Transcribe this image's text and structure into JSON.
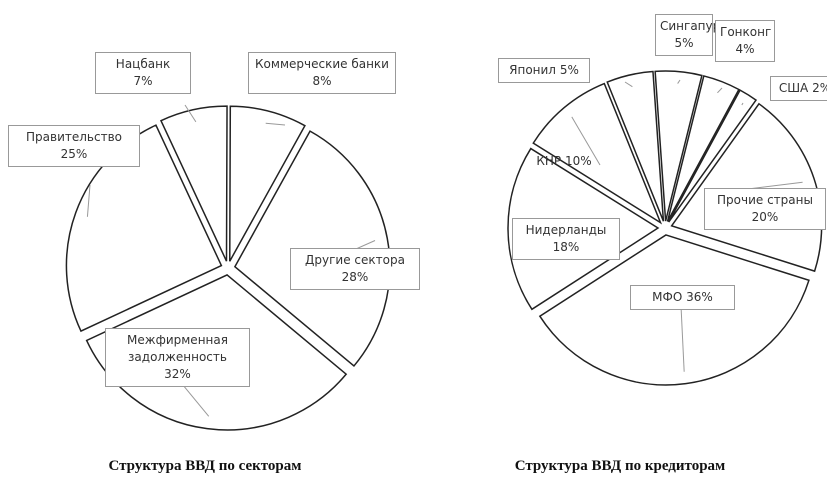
{
  "chart_data": [
    {
      "type": "pie",
      "title": "Структура ВВД по секторам",
      "categories": [
        "Нацбанк",
        "Коммерческие банки",
        "Другие сектора",
        "Межфирменная задолженность",
        "Правительство"
      ],
      "values": [
        7,
        8,
        28,
        32,
        25
      ],
      "value_labels": [
        "7%",
        "8%",
        "28%",
        "32%",
        "25%"
      ]
    },
    {
      "type": "pie",
      "title": "Структура ВВД по кредиторам",
      "categories": [
        "Японил",
        "Сингапур",
        "Гонконг",
        "США",
        "Прочие страны",
        "МФО",
        "Нидерланды",
        "КНР"
      ],
      "values": [
        5,
        5,
        4,
        2,
        20,
        36,
        18,
        10
      ],
      "value_labels": [
        "5%",
        "5%",
        "4%",
        "2%",
        "20%",
        "36%",
        "18%",
        "10%"
      ]
    }
  ]
}
